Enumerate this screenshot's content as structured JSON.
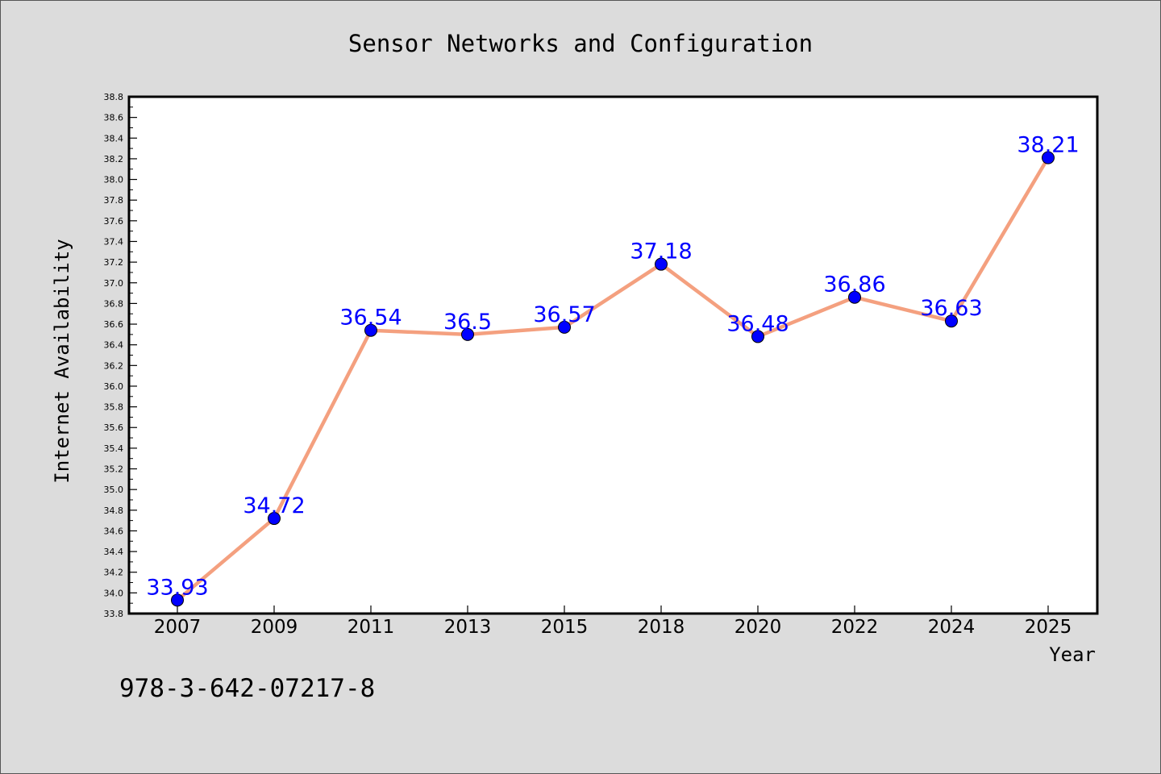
{
  "chart_data": {
    "type": "line",
    "title": "Sensor Networks and Configuration",
    "xlabel": "Year",
    "ylabel": "Internet Availability",
    "categories": [
      "2007",
      "2009",
      "2011",
      "2013",
      "2015",
      "2018",
      "2020",
      "2022",
      "2024",
      "2025"
    ],
    "series": [
      {
        "values": [
          33.93,
          34.72,
          36.54,
          36.5,
          36.57,
          37.18,
          36.48,
          36.86,
          36.63,
          38.21
        ],
        "labels": [
          "33.93",
          "34.72",
          "36.54",
          "36.5",
          "36.57",
          "37.18",
          "36.48",
          "36.86",
          "36.63",
          "38.21"
        ]
      }
    ],
    "ylim": [
      33.8,
      38.8
    ],
    "yticks": [
      "33.8",
      "34.0",
      "34.2",
      "34.4",
      "34.6",
      "34.8",
      "35.0",
      "35.2",
      "35.4",
      "35.6",
      "35.8",
      "36.0",
      "36.2",
      "36.4",
      "36.6",
      "36.8",
      "37.0",
      "37.2",
      "37.4",
      "37.6",
      "37.8",
      "38.0",
      "38.2",
      "38.4",
      "38.6",
      "38.8"
    ],
    "grid": false,
    "legend": "none",
    "line_color": "#f4a07f",
    "marker_color": "#0000ff",
    "label_color": "#0000ff"
  },
  "footer": {
    "isbn": "978-3-642-07217-8"
  }
}
